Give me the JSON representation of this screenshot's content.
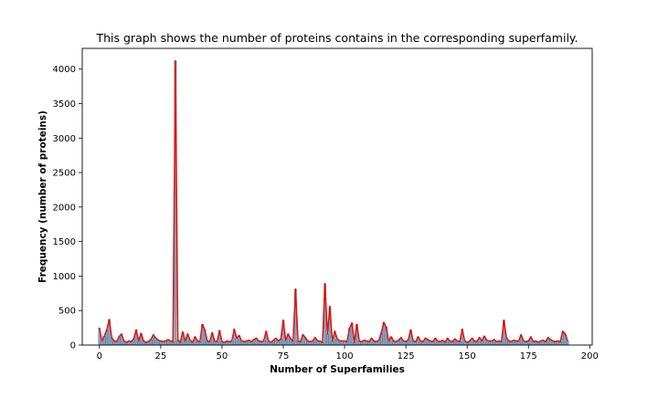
{
  "chart_data": {
    "type": "bar",
    "title": "This graph shows the number of proteins contains in the corresponding superfamily.",
    "xlabel": "Number of Superfamilies",
    "ylabel": "Frequency (number of proteins)",
    "xlim": [
      -7,
      201
    ],
    "ylim": [
      0,
      4300
    ],
    "xticks": [
      0,
      25,
      50,
      75,
      100,
      125,
      150,
      175,
      200
    ],
    "yticks": [
      0,
      500,
      1000,
      1500,
      2000,
      2500,
      3000,
      3500,
      4000
    ],
    "grid": false,
    "series": [
      {
        "x": [
          0,
          1,
          2,
          3,
          4,
          5,
          6,
          7,
          8,
          9,
          10,
          11,
          12,
          13,
          14,
          15,
          16,
          17,
          18,
          19,
          20,
          21,
          22,
          23,
          24,
          25,
          26,
          27,
          28,
          29,
          30,
          31,
          32,
          33,
          34,
          35,
          36,
          37,
          38,
          39,
          40,
          41,
          42,
          43,
          44,
          45,
          46,
          47,
          48,
          49,
          50,
          51,
          52,
          53,
          54,
          55,
          56,
          57,
          58,
          59,
          60,
          61,
          62,
          63,
          64,
          65,
          66,
          67,
          68,
          69,
          70,
          71,
          72,
          73,
          74,
          75,
          76,
          77,
          78,
          79,
          80,
          81,
          82,
          83,
          84,
          85,
          86,
          87,
          88,
          89,
          90,
          91,
          92,
          93,
          94,
          95,
          96,
          97,
          98,
          99,
          100,
          101,
          102,
          103,
          104,
          105,
          106,
          107,
          108,
          109,
          110,
          111,
          112,
          113,
          114,
          115,
          116,
          117,
          118,
          119,
          120,
          121,
          122,
          123,
          124,
          125,
          126,
          127,
          128,
          129,
          130,
          131,
          132,
          133,
          134,
          135,
          136,
          137,
          138,
          139,
          140,
          141,
          142,
          143,
          144,
          145,
          146,
          147,
          148,
          149,
          150,
          151,
          152,
          153,
          154,
          155,
          156,
          157,
          158,
          159,
          160,
          161,
          162,
          163,
          164,
          165,
          166,
          167,
          168,
          169,
          170,
          171,
          172,
          173,
          174,
          175,
          176,
          177,
          178,
          179,
          180,
          181,
          182,
          183,
          184,
          185,
          186,
          187,
          188,
          189,
          190,
          191
        ],
        "values": [
          250,
          60,
          130,
          220,
          370,
          110,
          60,
          50,
          120,
          160,
          60,
          40,
          60,
          50,
          90,
          220,
          60,
          170,
          60,
          40,
          50,
          80,
          150,
          100,
          70,
          60,
          50,
          60,
          80,
          60,
          50,
          4120,
          70,
          40,
          190,
          60,
          160,
          70,
          40,
          120,
          60,
          50,
          300,
          220,
          60,
          50,
          180,
          60,
          50,
          210,
          50,
          40,
          60,
          50,
          60,
          230,
          100,
          140,
          60,
          50,
          60,
          70,
          50,
          80,
          100,
          60,
          50,
          60,
          200,
          60,
          40,
          70,
          100,
          60,
          90,
          360,
          70,
          160,
          90,
          60,
          810,
          60,
          50,
          150,
          110,
          60,
          50,
          60,
          110,
          60,
          60,
          40,
          890,
          160,
          560,
          60,
          200,
          90,
          60,
          60,
          60,
          50,
          240,
          320,
          40,
          300,
          60,
          50,
          70,
          60,
          50,
          100,
          60,
          50,
          70,
          180,
          330,
          260,
          60,
          120,
          60,
          50,
          70,
          110,
          60,
          50,
          80,
          220,
          60,
          50,
          120,
          60,
          50,
          100,
          80,
          60,
          50,
          100,
          60,
          50,
          70,
          40,
          100,
          60,
          50,
          90,
          60,
          50,
          230,
          60,
          40,
          60,
          100,
          60,
          50,
          110,
          60,
          130,
          70,
          60,
          60,
          80,
          50,
          60,
          50,
          360,
          110,
          60,
          50,
          70,
          60,
          60,
          150,
          60,
          50,
          60,
          120,
          50,
          60,
          40,
          60,
          70,
          50,
          110,
          80,
          60,
          50,
          60,
          50,
          200,
          160,
          60
        ]
      }
    ]
  }
}
